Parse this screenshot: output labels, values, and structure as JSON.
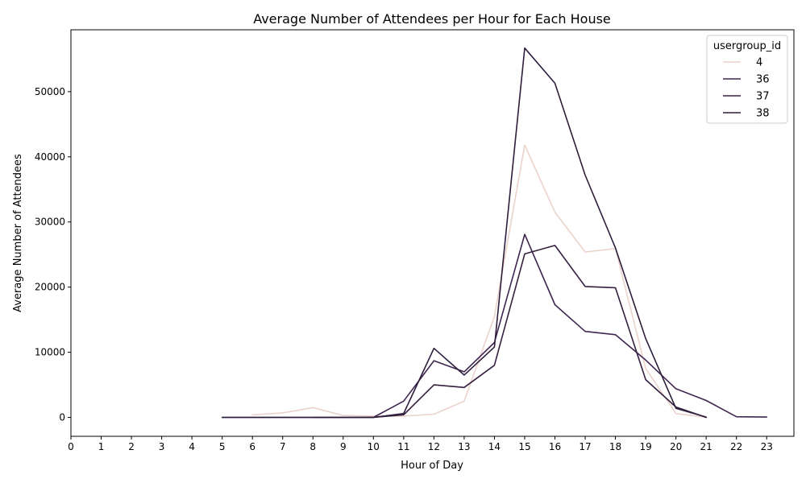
{
  "chart_data": {
    "type": "line",
    "title": "Average Number of Attendees per Hour for Each House",
    "xlabel": "Hour of Day",
    "ylabel": "Average Number of Attendees",
    "xlim": [
      0,
      23.9
    ],
    "ylim": [
      -2900,
      59500
    ],
    "xticks": [
      0,
      1,
      2,
      3,
      4,
      5,
      6,
      7,
      8,
      9,
      10,
      11,
      12,
      13,
      14,
      15,
      16,
      17,
      18,
      19,
      20,
      21,
      22,
      23
    ],
    "yticks": [
      0,
      10000,
      20000,
      30000,
      40000,
      50000
    ],
    "grid": false,
    "legend": {
      "title": "usergroup_id",
      "position": "top-right"
    },
    "series": [
      {
        "name": "4",
        "color": "#ebd3cc",
        "x": [
          6,
          7,
          8,
          9,
          10,
          11,
          12,
          13,
          14,
          15,
          16,
          17,
          18,
          19,
          20,
          21
        ],
        "y": [
          400,
          700,
          1500,
          300,
          200,
          200,
          500,
          2500,
          15500,
          41800,
          31500,
          25400,
          25900,
          7500,
          600,
          0
        ]
      },
      {
        "name": "36",
        "color": "#3f2650",
        "x": [
          5,
          6,
          7,
          8,
          9,
          10,
          11,
          12,
          13,
          14,
          15,
          16,
          17,
          18,
          19,
          20,
          21,
          22,
          23
        ],
        "y": [
          0,
          0,
          0,
          0,
          0,
          0,
          2500,
          8700,
          7000,
          11500,
          28100,
          17300,
          13200,
          12700,
          8800,
          4400,
          2600,
          100,
          50
        ]
      },
      {
        "name": "37",
        "color": "#35203f",
        "x": [
          8,
          9,
          10,
          11,
          12,
          13,
          14,
          15,
          16,
          17,
          18,
          19,
          20,
          21
        ],
        "y": [
          0,
          0,
          0,
          400,
          5000,
          4600,
          8000,
          25100,
          26400,
          20100,
          19900,
          5800,
          1600,
          0
        ]
      },
      {
        "name": "38",
        "color": "#2e1e3c",
        "x": [
          5,
          6,
          7,
          8,
          9,
          10,
          11,
          12,
          13,
          14,
          15,
          16,
          17,
          18,
          19,
          20,
          21
        ],
        "y": [
          0,
          0,
          0,
          0,
          0,
          0,
          600,
          10600,
          6500,
          10800,
          56700,
          51300,
          37200,
          26000,
          12100,
          1400,
          50
        ]
      }
    ]
  }
}
